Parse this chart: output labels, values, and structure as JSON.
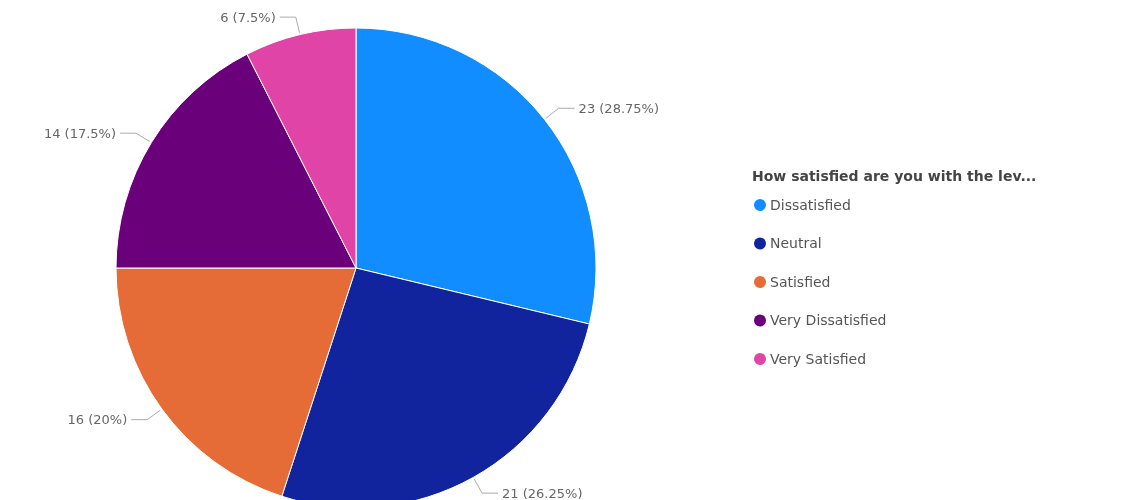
{
  "chart_data": {
    "type": "pie",
    "legend_title": "How satisfied are you with the lev...",
    "categories": [
      "Dissatisfied",
      "Neutral",
      "Satisfied",
      "Very Dissatisfied",
      "Very Satisfied"
    ],
    "values": [
      23,
      21,
      16,
      14,
      6
    ],
    "colors": [
      "#118dff",
      "#12239e",
      "#e66c37",
      "#6b007b",
      "#e044a7"
    ],
    "value_labels": [
      "23 (28.75%)",
      "21 (26.25%)",
      "16 (20%)",
      "14 (17.5%)",
      "6 (7.5%)"
    ],
    "legend": "right"
  }
}
